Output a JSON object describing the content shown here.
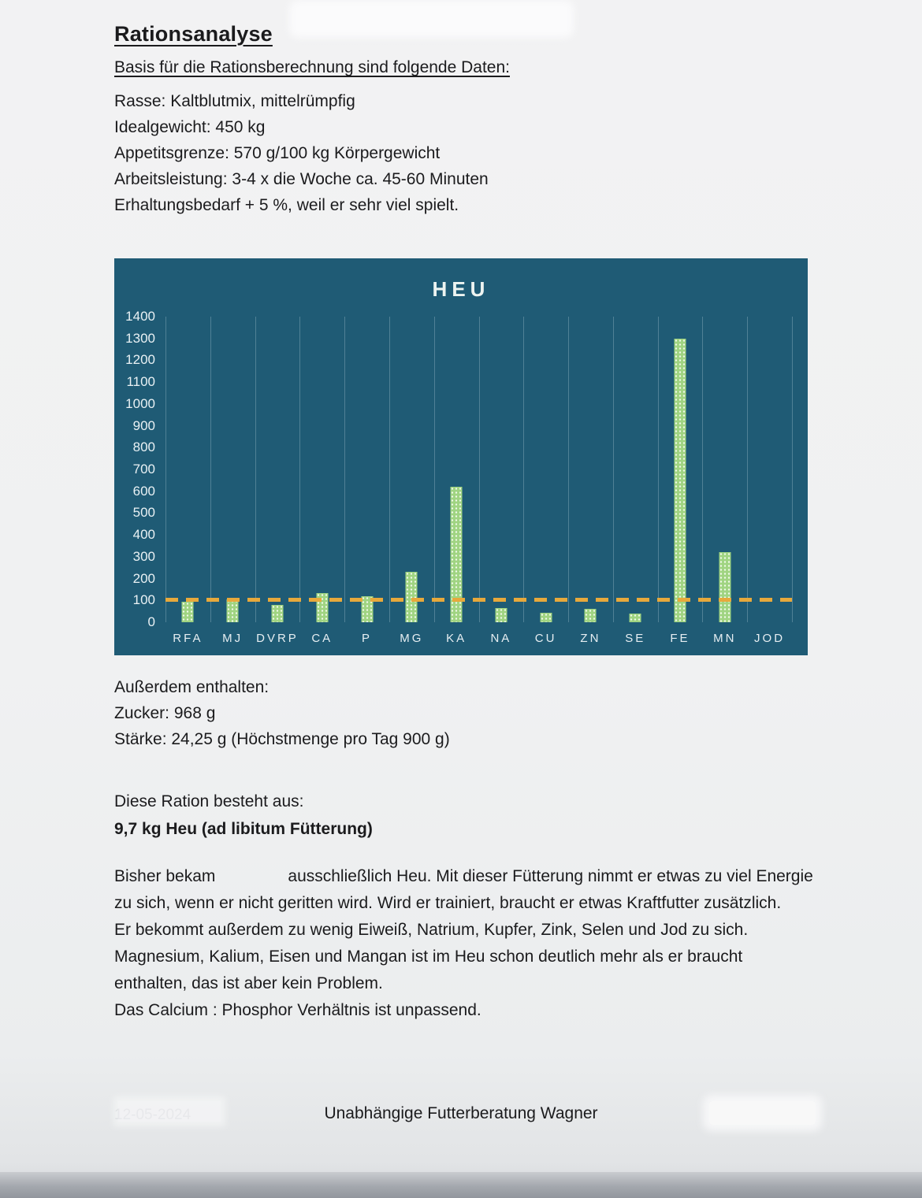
{
  "document": {
    "title": "Rationsanalyse",
    "intro_heading": "Basis für die Rationsberechnung sind folgende Daten:",
    "facts": [
      "Rasse: Kaltblutmix, mittelrümpfig",
      "Idealgewicht: 450 kg",
      "Appetitsgrenze: 570 g/100 kg Körpergewicht",
      "Arbeitsleistung: 3-4 x die Woche ca. 45-60 Minuten",
      "Erhaltungsbedarf + 5 %, weil er sehr viel spielt."
    ],
    "additional_heading": "Außerdem enthalten:",
    "additional_lines": [
      "Zucker: 968 g",
      "Stärke: 24,25 g (Höchstmenge pro Tag 900 g)"
    ],
    "ration_heading": "Diese Ration besteht aus:",
    "ration_detail": "9,7 kg Heu (ad libitum Fütterung)",
    "body": {
      "p1_before_gap": "Bisher bekam",
      "p1_after_gap": "ausschließlich Heu. Mit dieser Fütterung nimmt er etwas zu viel Energie zu sich, wenn er nicht geritten wird. Wird er trainiert, braucht er etwas Kraftfutter zusätzlich.",
      "p2": "Er bekommt außerdem zu wenig Eiweiß, Natrium, Kupfer, Zink, Selen und Jod zu sich. Magnesium, Kalium, Eisen und Mangan ist im Heu schon deutlich mehr als er braucht enthalten, das ist aber kein Problem.",
      "p3": "Das Calcium : Phosphor Verhältnis ist unpassend."
    },
    "footer": {
      "date_faint": "12-05-2024",
      "center": "Unabhängige Futterberatung Wagner"
    }
  },
  "chart_data": {
    "type": "bar",
    "title": "HEU",
    "categories": [
      "RFA",
      "MJ",
      "DVRP",
      "CA",
      "P",
      "MG",
      "KA",
      "NA",
      "CU",
      "ZN",
      "SE",
      "FE",
      "MN",
      "JOD"
    ],
    "values": [
      95,
      105,
      80,
      135,
      120,
      230,
      620,
      65,
      45,
      60,
      40,
      1300,
      320,
      0
    ],
    "reference_line_y": 100,
    "ylim": [
      0,
      1400
    ],
    "ytick_step": 100,
    "xlabel": "",
    "ylabel": "",
    "legend": "none",
    "grid": "vertical",
    "colors": {
      "chart_background": "#1f5b75",
      "bar": "#a0d482",
      "reference_line": "#e7a93c",
      "gridline": "#4b7d93",
      "chart_text": "#edf4f1"
    }
  }
}
